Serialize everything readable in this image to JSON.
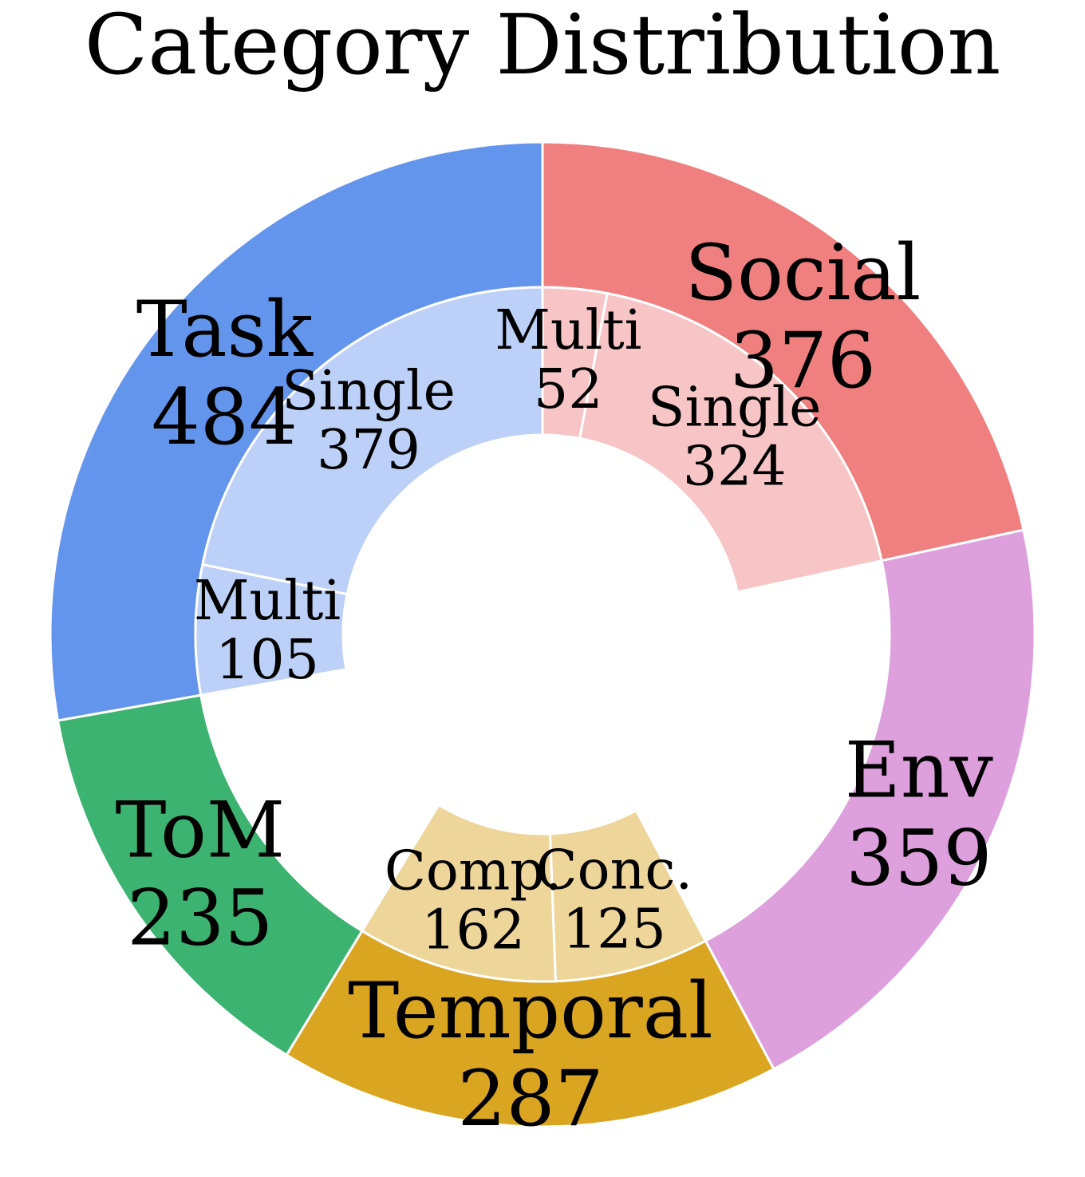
{
  "chart_data": {
    "type": "pie",
    "subtype": "nested-donut",
    "title": "Category Distribution",
    "grid": false,
    "legend": "none",
    "outer": [
      {
        "label": "Social",
        "value": 376,
        "color": "#f08080"
      },
      {
        "label": "Env",
        "value": 359,
        "color": "#dda0dd"
      },
      {
        "label": "Temporal",
        "value": 287,
        "color": "#daa520"
      },
      {
        "label": "ToM",
        "value": 235,
        "color": "#3cb371"
      },
      {
        "label": "Task",
        "value": 484,
        "color": "#6495ed"
      }
    ],
    "inner": [
      {
        "label": "Multi",
        "value": 52,
        "parent": "Social",
        "color": "#f7c5c5"
      },
      {
        "label": "Single",
        "value": 324,
        "parent": "Social",
        "color": "#f7c5c5"
      },
      {
        "label": "Conc.",
        "value": 125,
        "parent": "Temporal",
        "color": "#eed69b"
      },
      {
        "label": "Comp.",
        "value": 162,
        "parent": "Temporal",
        "color": "#eed69b"
      },
      {
        "label": "Multi",
        "value": 105,
        "parent": "Task",
        "color": "#bcd0f8"
      },
      {
        "label": "Single",
        "value": 379,
        "parent": "Task",
        "color": "#bcd0f8"
      }
    ]
  }
}
